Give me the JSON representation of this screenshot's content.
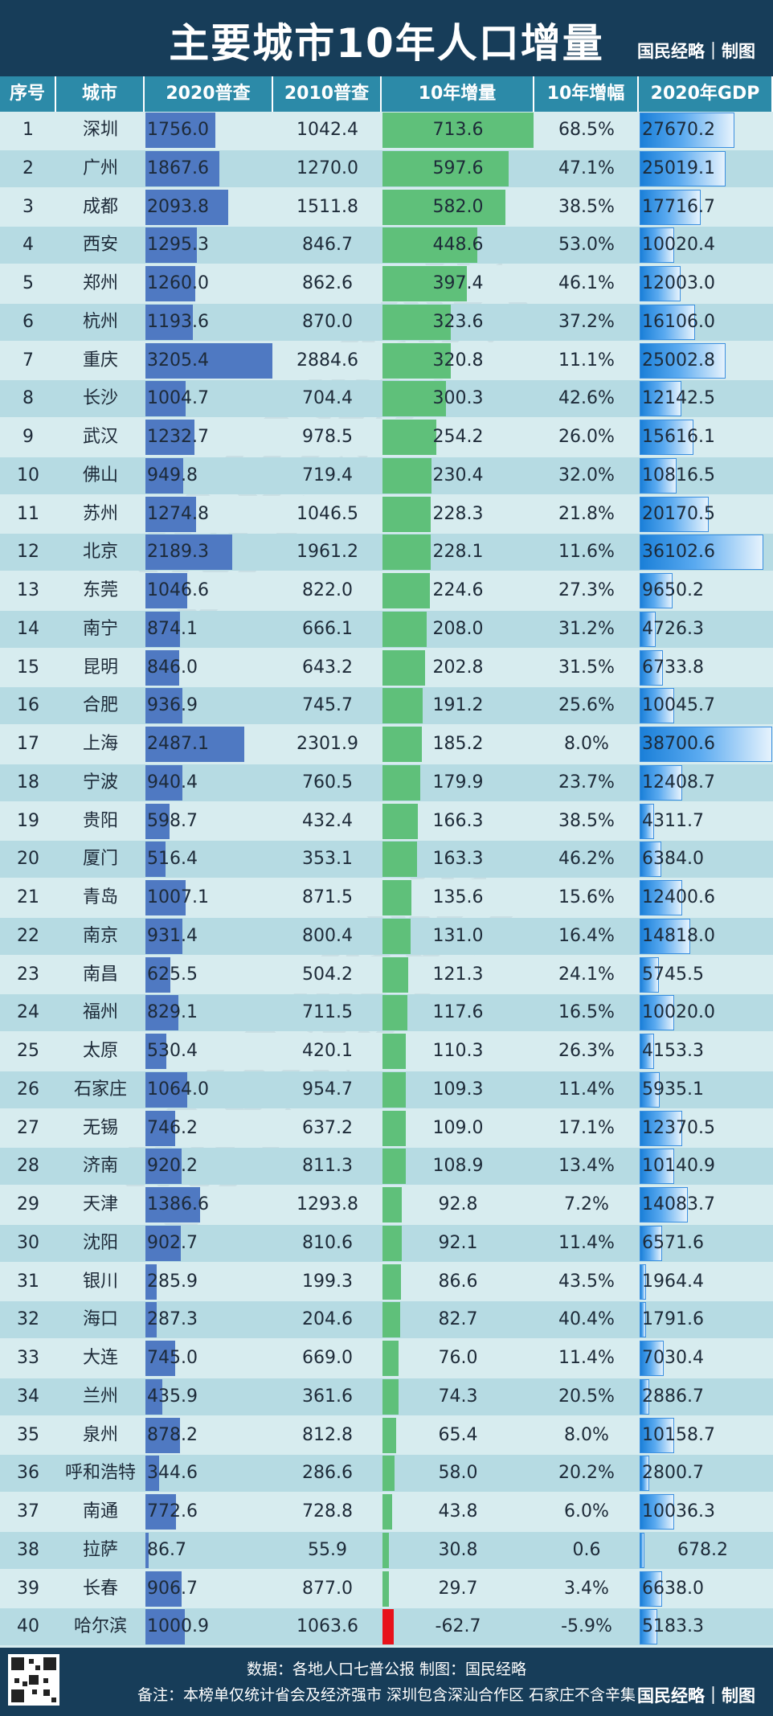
{
  "title": "主要城市10年人口增量",
  "brand": "国民经略｜制图",
  "watermark": "国民经略",
  "headers": [
    "序号",
    "城市",
    "2020普查",
    "2010普查",
    "10年增量",
    "10年增幅",
    "2020年GDP"
  ],
  "footer": {
    "line1": "数据：各地人口七普公报  制图：国民经略",
    "line2": "备注：本榜单仅统计省会及经济强市  深圳包含深汕合作区  石家庄不含辛集"
  },
  "colors": {
    "title_bg": "#173d59",
    "header_bg": "#2c8aa8",
    "pop_bar": "#4f79c2",
    "inc_bar": "#5fc07a",
    "neg_bar": "#e8121b",
    "gdp_bar": "#1a7fd8"
  },
  "chart_data": {
    "type": "table",
    "columns": [
      "序号",
      "城市",
      "2020普查",
      "2010普查",
      "10年增量",
      "10年增幅",
      "2020年GDP"
    ],
    "rows": [
      {
        "rank": "1",
        "city": "深圳",
        "pop2020": "1756.0",
        "pop2010": "1042.4",
        "inc": "713.6",
        "rate": "68.5%",
        "gdp": "27670.2"
      },
      {
        "rank": "2",
        "city": "广州",
        "pop2020": "1867.6",
        "pop2010": "1270.0",
        "inc": "597.6",
        "rate": "47.1%",
        "gdp": "25019.1"
      },
      {
        "rank": "3",
        "city": "成都",
        "pop2020": "2093.8",
        "pop2010": "1511.8",
        "inc": "582.0",
        "rate": "38.5%",
        "gdp": "17716.7"
      },
      {
        "rank": "4",
        "city": "西安",
        "pop2020": "1295.3",
        "pop2010": "846.7",
        "inc": "448.6",
        "rate": "53.0%",
        "gdp": "10020.4"
      },
      {
        "rank": "5",
        "city": "郑州",
        "pop2020": "1260.0",
        "pop2010": "862.6",
        "inc": "397.4",
        "rate": "46.1%",
        "gdp": "12003.0"
      },
      {
        "rank": "6",
        "city": "杭州",
        "pop2020": "1193.6",
        "pop2010": "870.0",
        "inc": "323.6",
        "rate": "37.2%",
        "gdp": "16106.0"
      },
      {
        "rank": "7",
        "city": "重庆",
        "pop2020": "3205.4",
        "pop2010": "2884.6",
        "inc": "320.8",
        "rate": "11.1%",
        "gdp": "25002.8"
      },
      {
        "rank": "8",
        "city": "长沙",
        "pop2020": "1004.7",
        "pop2010": "704.4",
        "inc": "300.3",
        "rate": "42.6%",
        "gdp": "12142.5"
      },
      {
        "rank": "9",
        "city": "武汉",
        "pop2020": "1232.7",
        "pop2010": "978.5",
        "inc": "254.2",
        "rate": "26.0%",
        "gdp": "15616.1"
      },
      {
        "rank": "10",
        "city": "佛山",
        "pop2020": "949.8",
        "pop2010": "719.4",
        "inc": "230.4",
        "rate": "32.0%",
        "gdp": "10816.5"
      },
      {
        "rank": "11",
        "city": "苏州",
        "pop2020": "1274.8",
        "pop2010": "1046.5",
        "inc": "228.3",
        "rate": "21.8%",
        "gdp": "20170.5"
      },
      {
        "rank": "12",
        "city": "北京",
        "pop2020": "2189.3",
        "pop2010": "1961.2",
        "inc": "228.1",
        "rate": "11.6%",
        "gdp": "36102.6"
      },
      {
        "rank": "13",
        "city": "东莞",
        "pop2020": "1046.6",
        "pop2010": "822.0",
        "inc": "224.6",
        "rate": "27.3%",
        "gdp": "9650.2"
      },
      {
        "rank": "14",
        "city": "南宁",
        "pop2020": "874.1",
        "pop2010": "666.1",
        "inc": "208.0",
        "rate": "31.2%",
        "gdp": "4726.3"
      },
      {
        "rank": "15",
        "city": "昆明",
        "pop2020": "846.0",
        "pop2010": "643.2",
        "inc": "202.8",
        "rate": "31.5%",
        "gdp": "6733.8"
      },
      {
        "rank": "16",
        "city": "合肥",
        "pop2020": "936.9",
        "pop2010": "745.7",
        "inc": "191.2",
        "rate": "25.6%",
        "gdp": "10045.7"
      },
      {
        "rank": "17",
        "city": "上海",
        "pop2020": "2487.1",
        "pop2010": "2301.9",
        "inc": "185.2",
        "rate": "8.0%",
        "gdp": "38700.6"
      },
      {
        "rank": "18",
        "city": "宁波",
        "pop2020": "940.4",
        "pop2010": "760.5",
        "inc": "179.9",
        "rate": "23.7%",
        "gdp": "12408.7"
      },
      {
        "rank": "19",
        "city": "贵阳",
        "pop2020": "598.7",
        "pop2010": "432.4",
        "inc": "166.3",
        "rate": "38.5%",
        "gdp": "4311.7"
      },
      {
        "rank": "20",
        "city": "厦门",
        "pop2020": "516.4",
        "pop2010": "353.1",
        "inc": "163.3",
        "rate": "46.2%",
        "gdp": "6384.0"
      },
      {
        "rank": "21",
        "city": "青岛",
        "pop2020": "1007.1",
        "pop2010": "871.5",
        "inc": "135.6",
        "rate": "15.6%",
        "gdp": "12400.6"
      },
      {
        "rank": "22",
        "city": "南京",
        "pop2020": "931.4",
        "pop2010": "800.4",
        "inc": "131.0",
        "rate": "16.4%",
        "gdp": "14818.0"
      },
      {
        "rank": "23",
        "city": "南昌",
        "pop2020": "625.5",
        "pop2010": "504.2",
        "inc": "121.3",
        "rate": "24.1%",
        "gdp": "5745.5"
      },
      {
        "rank": "24",
        "city": "福州",
        "pop2020": "829.1",
        "pop2010": "711.5",
        "inc": "117.6",
        "rate": "16.5%",
        "gdp": "10020.0"
      },
      {
        "rank": "25",
        "city": "太原",
        "pop2020": "530.4",
        "pop2010": "420.1",
        "inc": "110.3",
        "rate": "26.3%",
        "gdp": "4153.3"
      },
      {
        "rank": "26",
        "city": "石家庄",
        "pop2020": "1064.0",
        "pop2010": "954.7",
        "inc": "109.3",
        "rate": "11.4%",
        "gdp": "5935.1"
      },
      {
        "rank": "27",
        "city": "无锡",
        "pop2020": "746.2",
        "pop2010": "637.2",
        "inc": "109.0",
        "rate": "17.1%",
        "gdp": "12370.5"
      },
      {
        "rank": "28",
        "city": "济南",
        "pop2020": "920.2",
        "pop2010": "811.3",
        "inc": "108.9",
        "rate": "13.4%",
        "gdp": "10140.9"
      },
      {
        "rank": "29",
        "city": "天津",
        "pop2020": "1386.6",
        "pop2010": "1293.8",
        "inc": "92.8",
        "rate": "7.2%",
        "gdp": "14083.7"
      },
      {
        "rank": "30",
        "city": "沈阳",
        "pop2020": "902.7",
        "pop2010": "810.6",
        "inc": "92.1",
        "rate": "11.4%",
        "gdp": "6571.6"
      },
      {
        "rank": "31",
        "city": "银川",
        "pop2020": "285.9",
        "pop2010": "199.3",
        "inc": "86.6",
        "rate": "43.5%",
        "gdp": "1964.4"
      },
      {
        "rank": "32",
        "city": "海口",
        "pop2020": "287.3",
        "pop2010": "204.6",
        "inc": "82.7",
        "rate": "40.4%",
        "gdp": "1791.6"
      },
      {
        "rank": "33",
        "city": "大连",
        "pop2020": "745.0",
        "pop2010": "669.0",
        "inc": "76.0",
        "rate": "11.4%",
        "gdp": "7030.4"
      },
      {
        "rank": "34",
        "city": "兰州",
        "pop2020": "435.9",
        "pop2010": "361.6",
        "inc": "74.3",
        "rate": "20.5%",
        "gdp": "2886.7"
      },
      {
        "rank": "35",
        "city": "泉州",
        "pop2020": "878.2",
        "pop2010": "812.8",
        "inc": "65.4",
        "rate": "8.0%",
        "gdp": "10158.7"
      },
      {
        "rank": "36",
        "city": "呼和浩特",
        "pop2020": "344.6",
        "pop2010": "286.6",
        "inc": "58.0",
        "rate": "20.2%",
        "gdp": "2800.7"
      },
      {
        "rank": "37",
        "city": "南通",
        "pop2020": "772.6",
        "pop2010": "728.8",
        "inc": "43.8",
        "rate": "6.0%",
        "gdp": "10036.3"
      },
      {
        "rank": "38",
        "city": "拉萨",
        "pop2020": "86.7",
        "pop2010": "55.9",
        "inc": "30.8",
        "rate": "0.6",
        "gdp": "678.2"
      },
      {
        "rank": "39",
        "city": "长春",
        "pop2020": "906.7",
        "pop2010": "877.0",
        "inc": "29.7",
        "rate": "3.4%",
        "gdp": "6638.0"
      },
      {
        "rank": "40",
        "city": "哈尔滨",
        "pop2020": "1000.9",
        "pop2010": "1063.6",
        "inc": "-62.7",
        "rate": "-5.9%",
        "gdp": "5183.3"
      }
    ]
  }
}
